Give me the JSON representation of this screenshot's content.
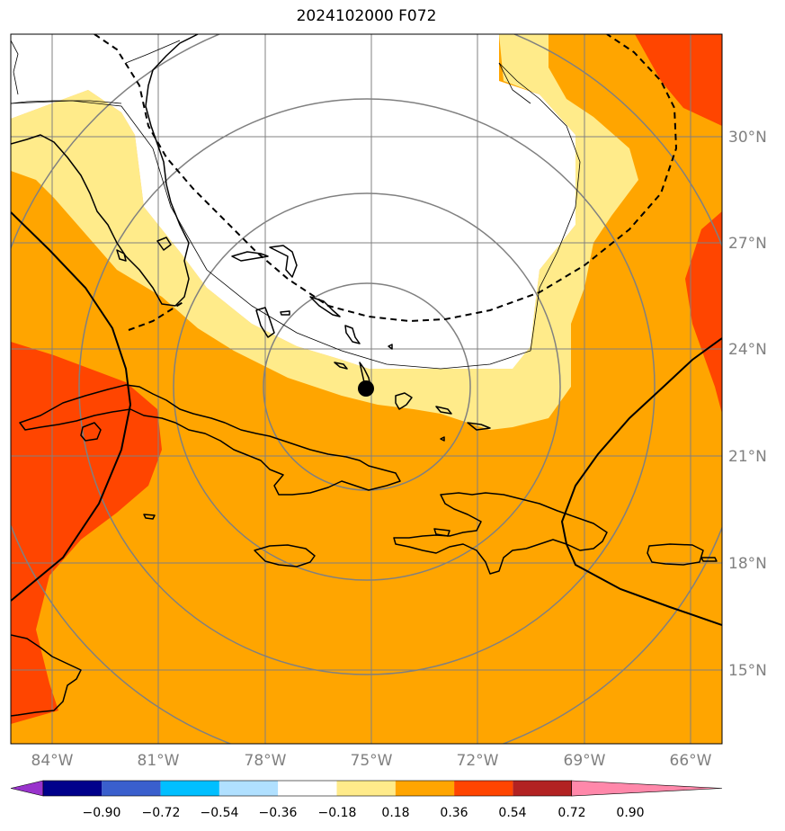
{
  "map": {
    "title": "2024102000 F072",
    "center_marker": "storm-center-dot",
    "lat_labels": [
      "30°N",
      "27°N",
      "24°N",
      "21°N",
      "18°N",
      "15°N"
    ],
    "lon_labels": [
      "84°W",
      "81°W",
      "78°W",
      "75°W",
      "72°W",
      "69°W",
      "66°W"
    ]
  },
  "colorbar": {
    "tick_labels": [
      "−0.90",
      "−0.72",
      "−0.54",
      "−0.36",
      "−0.18",
      "0.18",
      "0.36",
      "0.54",
      "0.72",
      "0.90"
    ],
    "colors": [
      "#9933cc",
      "#00008b",
      "#3a5fcd",
      "#00bfff",
      "#b0e0ff",
      "#ffffff",
      "#ffeb8a",
      "#ffa500",
      "#ff4500",
      "#b22222",
      "#ff88aa"
    ]
  },
  "palette": {
    "white": "#ffffff",
    "light_yellow": "#ffeb8a",
    "orange": "#ffa500",
    "red_orange": "#ff4500",
    "grid": "#808080"
  }
}
